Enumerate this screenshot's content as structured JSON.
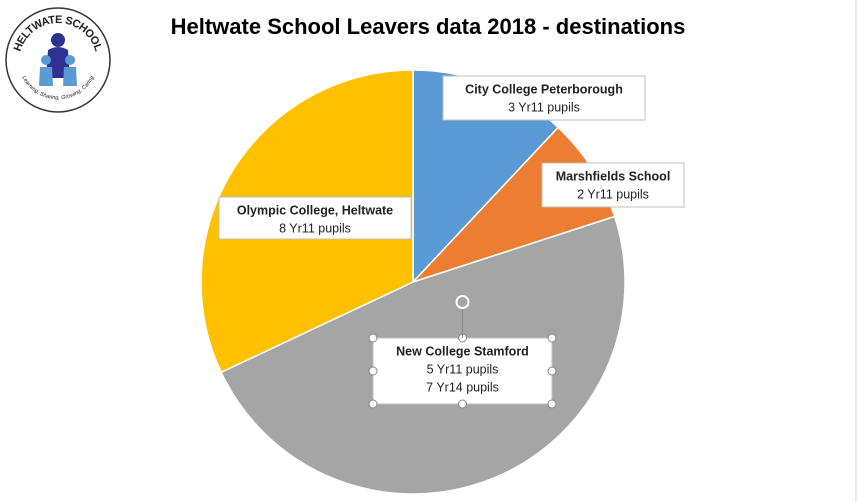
{
  "chart_data": {
    "type": "pie",
    "title": "Heltwate School Leavers data 2018 - destinations",
    "categories": [
      "City College Peterborough",
      "Marshfields School",
      "New College Stamford",
      "Olympic College, Heltwate"
    ],
    "values": [
      3,
      2,
      12,
      8
    ],
    "value_labels": [
      [
        "3 Yr11 pupils"
      ],
      [
        "2 Yr11 pupils"
      ],
      [
        "5 Yr11 pupils",
        "7 Yr14 pupils"
      ],
      [
        "8 Yr11 pupils"
      ]
    ],
    "colors": [
      "#5b9bd5",
      "#ed7d31",
      "#a5a5a5",
      "#ffc000"
    ]
  },
  "logo": {
    "name": "HELTWATE SCHOOL",
    "motto": "Learning, Sharing, Growing, Caring"
  }
}
